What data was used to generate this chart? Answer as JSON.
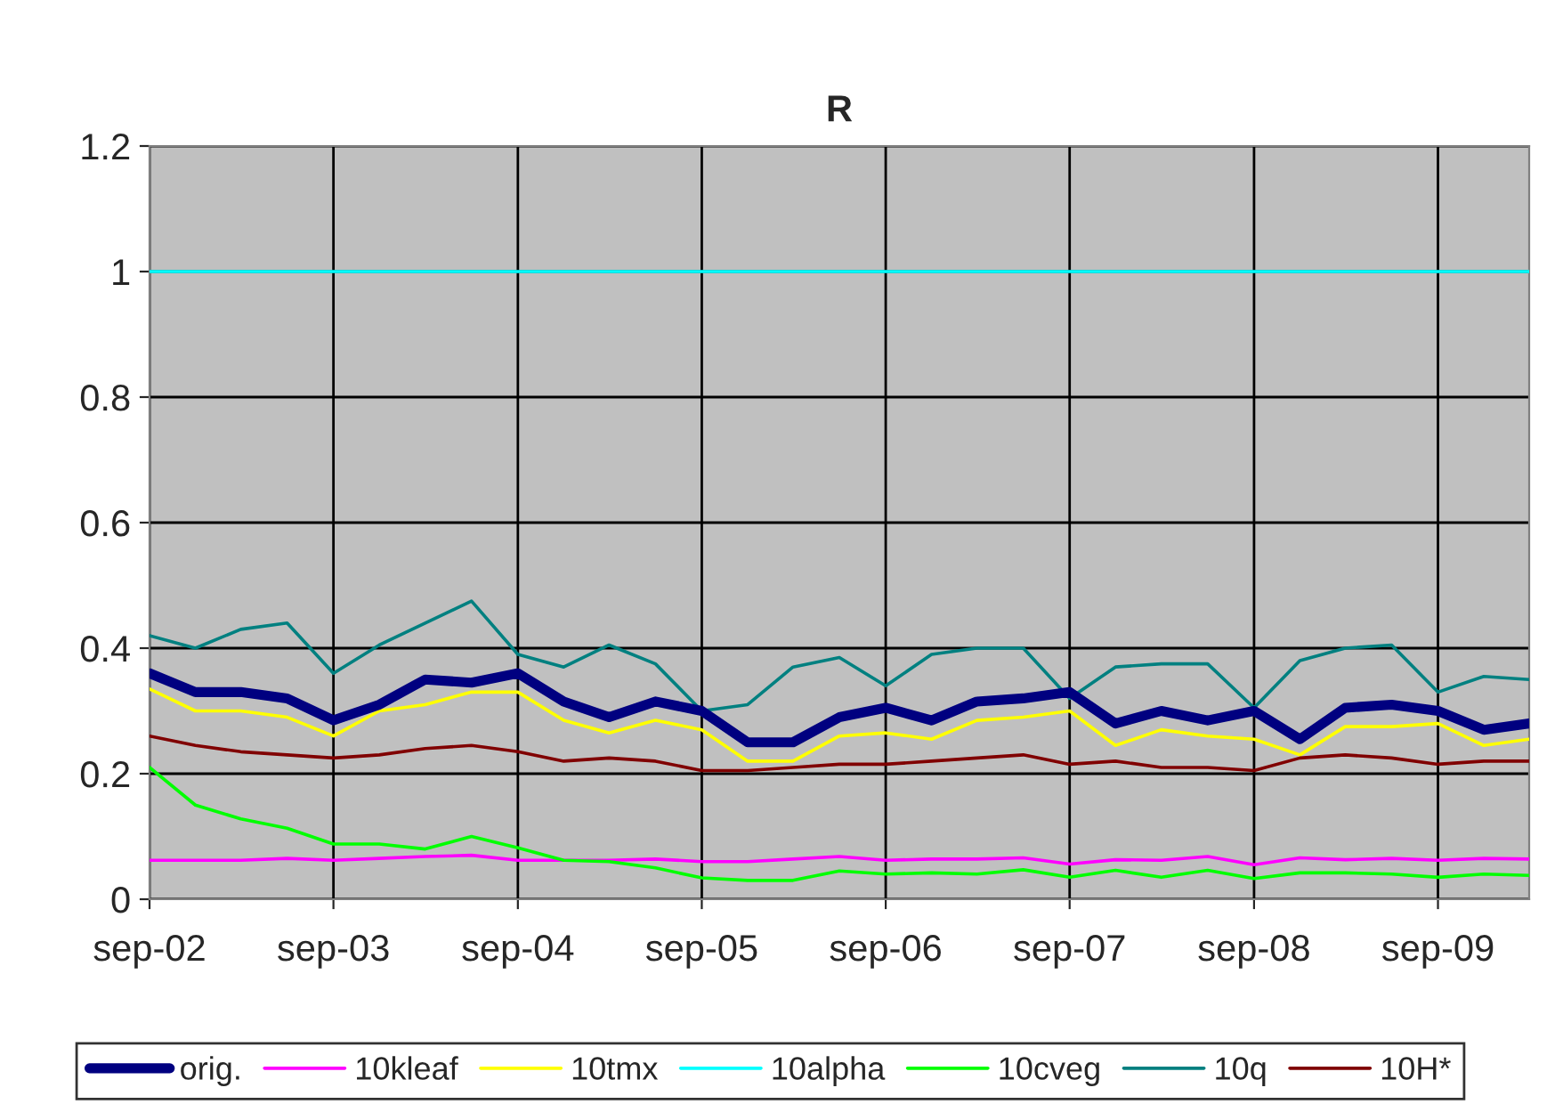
{
  "chart_data": {
    "type": "line",
    "title": "R",
    "x": [
      "2002-09",
      "2002-12",
      "2003-03",
      "2003-06",
      "2003-09",
      "2003-12",
      "2004-03",
      "2004-06",
      "2004-09",
      "2004-12",
      "2005-03",
      "2005-06",
      "2005-09",
      "2005-12",
      "2006-03",
      "2006-06",
      "2006-09",
      "2006-12",
      "2007-03",
      "2007-06",
      "2007-09",
      "2007-12",
      "2008-03",
      "2008-06",
      "2008-09",
      "2008-12",
      "2009-03",
      "2009-06",
      "2009-09",
      "2009-12",
      "2010-03"
    ],
    "series": [
      {
        "name": "orig.",
        "color": "#000080",
        "values": [
          0.36,
          0.33,
          0.33,
          0.32,
          0.285,
          0.31,
          0.35,
          0.345,
          0.36,
          0.315,
          0.29,
          0.315,
          0.3,
          0.25,
          0.25,
          0.29,
          0.305,
          0.285,
          0.315,
          0.32,
          0.33,
          0.28,
          0.3,
          0.285,
          0.3,
          0.255,
          0.305,
          0.31,
          0.3,
          0.27,
          0.28
        ]
      },
      {
        "name": "10kleaf",
        "color": "#ff00ff",
        "values": [
          0.062,
          0.062,
          0.062,
          0.065,
          0.062,
          0.065,
          0.068,
          0.07,
          0.062,
          0.062,
          0.062,
          0.064,
          0.06,
          0.06,
          0.064,
          0.068,
          0.062,
          0.064,
          0.064,
          0.066,
          0.056,
          0.063,
          0.062,
          0.068,
          0.055,
          0.066,
          0.063,
          0.065,
          0.062,
          0.065,
          0.064
        ]
      },
      {
        "name": "10tmx",
        "color": "#ffff00",
        "values": [
          0.335,
          0.3,
          0.3,
          0.29,
          0.26,
          0.3,
          0.31,
          0.33,
          0.33,
          0.285,
          0.265,
          0.285,
          0.27,
          0.22,
          0.22,
          0.26,
          0.265,
          0.255,
          0.285,
          0.29,
          0.3,
          0.245,
          0.27,
          0.26,
          0.255,
          0.23,
          0.275,
          0.275,
          0.28,
          0.245,
          0.255
        ]
      },
      {
        "name": "10alpha",
        "color": "#00ffff",
        "values": [
          1,
          1,
          1,
          1,
          1,
          1,
          1,
          1,
          1,
          1,
          1,
          1,
          1,
          1,
          1,
          1,
          1,
          1,
          1,
          1,
          1,
          1,
          1,
          1,
          1,
          1,
          1,
          1,
          1,
          1,
          1
        ]
      },
      {
        "name": "10cveg",
        "color": "#00ff00",
        "values": [
          0.21,
          0.15,
          0.128,
          0.113,
          0.088,
          0.088,
          0.08,
          0.1,
          0.082,
          0.062,
          0.06,
          0.05,
          0.034,
          0.03,
          0.03,
          0.045,
          0.04,
          0.042,
          0.04,
          0.047,
          0.035,
          0.046,
          0.035,
          0.046,
          0.033,
          0.042,
          0.042,
          0.04,
          0.035,
          0.04,
          0.038
        ]
      },
      {
        "name": "10q",
        "color": "#008080",
        "values": [
          0.42,
          0.4,
          0.43,
          0.44,
          0.36,
          0.405,
          0.44,
          0.475,
          0.39,
          0.37,
          0.405,
          0.375,
          0.3,
          0.31,
          0.37,
          0.385,
          0.34,
          0.39,
          0.4,
          0.4,
          0.32,
          0.37,
          0.375,
          0.375,
          0.305,
          0.38,
          0.4,
          0.405,
          0.33,
          0.355,
          0.35
        ]
      },
      {
        "name": "10H*",
        "color": "#800000",
        "values": [
          0.26,
          0.245,
          0.235,
          0.23,
          0.225,
          0.23,
          0.24,
          0.245,
          0.235,
          0.22,
          0.225,
          0.22,
          0.205,
          0.205,
          0.21,
          0.215,
          0.215,
          0.22,
          0.225,
          0.23,
          0.215,
          0.22,
          0.21,
          0.21,
          0.205,
          0.225,
          0.23,
          0.225,
          0.215,
          0.22,
          0.22
        ]
      }
    ],
    "xlim": [
      "2002-09",
      "2010-03"
    ],
    "xticks": [
      {
        "value": "2002-09",
        "label": "sep-02"
      },
      {
        "value": "2003-09",
        "label": "sep-03"
      },
      {
        "value": "2004-09",
        "label": "sep-04"
      },
      {
        "value": "2005-09",
        "label": "sep-05"
      },
      {
        "value": "2006-09",
        "label": "sep-06"
      },
      {
        "value": "2007-09",
        "label": "sep-07"
      },
      {
        "value": "2008-09",
        "label": "sep-08"
      },
      {
        "value": "2009-09",
        "label": "sep-09"
      }
    ],
    "ylim": [
      0,
      1.2
    ],
    "yticks": [
      0,
      {
        "value": 0.2,
        "label": "0.2"
      },
      {
        "value": 0.4,
        "label": "0.4"
      },
      {
        "value": 0.6,
        "label": "0.6"
      },
      {
        "value": 0.8,
        "label": "0.8"
      },
      1,
      {
        "value": 1.2,
        "label": "1.2"
      }
    ],
    "grid": true,
    "legend": "bottom",
    "marker": "none",
    "line_style": "solid"
  }
}
